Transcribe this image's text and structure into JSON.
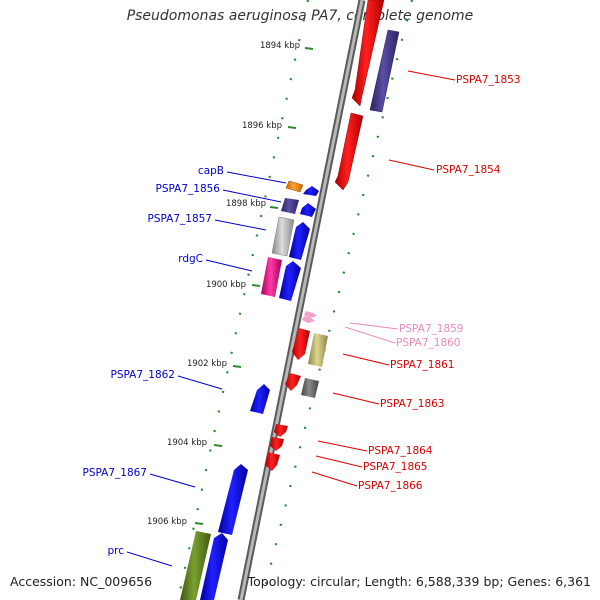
{
  "title": "Pseudomonas aeruginosa PA7, complete genome",
  "accession": "Accession: NC_009656",
  "topology": "Topology: circular; Length: 6,588,339 bp; Genes: 6,361",
  "ticks": [
    "1894 kbp",
    "1896 kbp",
    "1898 kbp",
    "1900 kbp",
    "1902 kbp",
    "1904 kbp",
    "1906 kbp"
  ],
  "colors": {
    "backbone": "#8c8c8c",
    "tick": "#2e8b2e",
    "left_label": "#0000cc",
    "right_label": "#dd0000",
    "pink_label": "#ee88bb"
  },
  "left_labels": [
    {
      "name": "capB",
      "color": "#0000cc"
    },
    {
      "name": "PSPA7_1856",
      "color": "#0000cc"
    },
    {
      "name": "PSPA7_1857",
      "color": "#0000cc"
    },
    {
      "name": "rdgC",
      "color": "#0000cc"
    },
    {
      "name": "PSPA7_1862",
      "color": "#0000cc"
    },
    {
      "name": "PSPA7_1867",
      "color": "#0000cc"
    },
    {
      "name": "prc",
      "color": "#0000cc"
    }
  ],
  "right_labels": [
    {
      "name": "PSPA7_1853",
      "color": "#dd0000"
    },
    {
      "name": "PSPA7_1854",
      "color": "#dd0000"
    },
    {
      "name": "PSPA7_1859",
      "color": "#ee88bb"
    },
    {
      "name": "PSPA7_1860",
      "color": "#ee88bb"
    },
    {
      "name": "PSPA7_1861",
      "color": "#dd0000"
    },
    {
      "name": "PSPA7_1863",
      "color": "#dd0000"
    },
    {
      "name": "PSPA7_1864",
      "color": "#dd0000"
    },
    {
      "name": "PSPA7_1865",
      "color": "#dd0000"
    },
    {
      "name": "PSPA7_1866",
      "color": "#dd0000"
    }
  ]
}
